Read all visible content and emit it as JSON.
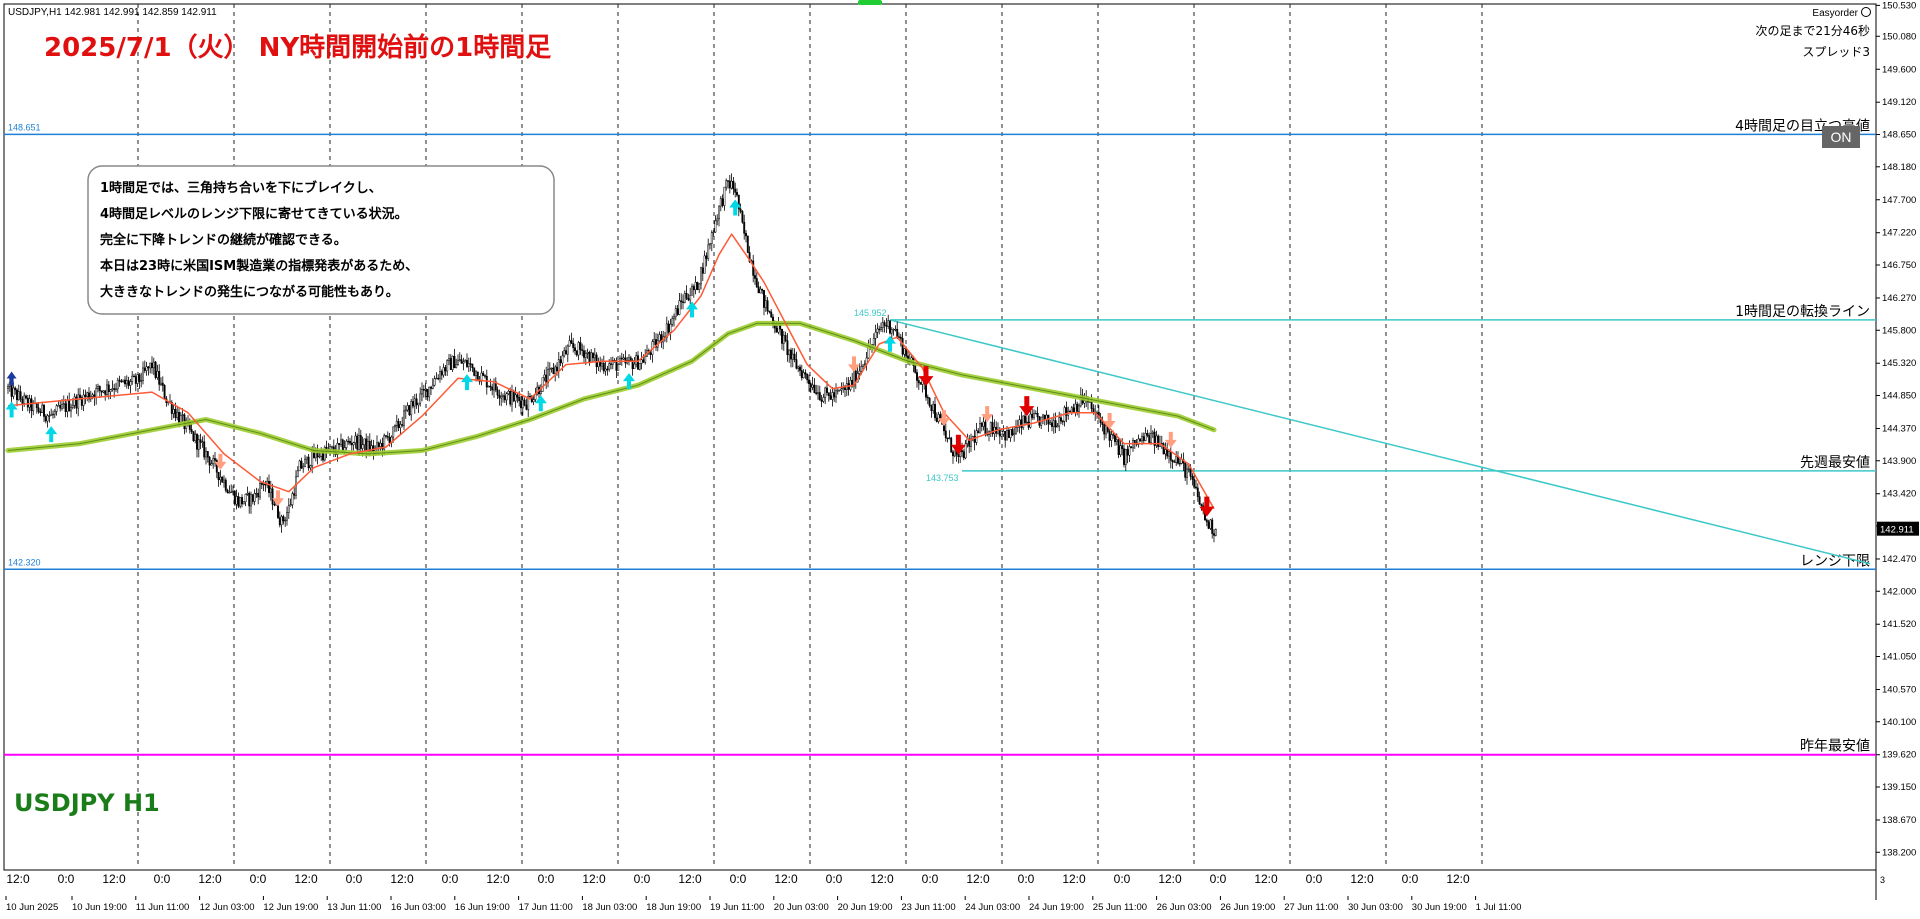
{
  "window": {
    "header": "USDJPY,H1  142.981 142.991 142.859 142.911"
  },
  "title_overlay": "2025/7/1（火） NY時間開始前の1時間足",
  "symbol_label": "USDJPY H1",
  "info_panel": {
    "brand": "Easyorder",
    "countdown": "次の足まで21分46秒",
    "spread": "スプレッド3"
  },
  "on_button": "ON",
  "annotation": {
    "lines": [
      "1時間足では、三角持ち合いを下にブレイクし、",
      "4時間足レベルのレンジ下限に寄せてきている状況。",
      "完全に下降トレンドの継続が確認できる。",
      "本日は23時に米国ISM製造業の指標発表があるため、",
      "大ききなトレンドの発生につながる可能性もあり。"
    ]
  },
  "colors": {
    "level_line": "#1e7fd6",
    "cyan_line": "#3cc8c8",
    "magenta_line": "#ff00ff",
    "ma_fast": "#ff5a36",
    "ma_slow": "#9ccc2e",
    "title": "#e01010",
    "symbol": "#1a7d1a",
    "arrow_up": "#00d8e8",
    "arrow_down_light": "#ff9f80",
    "arrow_down_strong": "#e00000"
  },
  "chart_data": {
    "type": "candlestick",
    "symbol": "USDJPY",
    "timeframe": "H1",
    "ylim": [
      138.0,
      150.55
    ],
    "current_price": "142.911",
    "y_ticks": [
      "150.530",
      "150.080",
      "149.600",
      "149.120",
      "148.650",
      "148.180",
      "147.700",
      "147.220",
      "146.750",
      "146.270",
      "145.800",
      "145.320",
      "144.850",
      "144.370",
      "143.900",
      "143.420",
      "142.950",
      "142.470",
      "142.000",
      "141.520",
      "141.050",
      "140.570",
      "140.100",
      "139.620",
      "139.150",
      "138.670",
      "138.200"
    ],
    "x_top_labels": [
      "12:0",
      "0:0",
      "12:0",
      "0:0",
      "12:0",
      "0:0",
      "12:0",
      "0:0",
      "12:0",
      "0:0",
      "12:0",
      "0:0",
      "12:0",
      "0:0",
      "12:0",
      "0:0",
      "12:0",
      "0:0",
      "12:0",
      "0:0",
      "12:0",
      "0:0",
      "12:0",
      "0:0",
      "12:0",
      "0:0",
      "12:0",
      "0:0",
      "12:0",
      "0:0",
      "12:0"
    ],
    "x_bottom_labels": [
      "10 Jun 2025",
      "10 Jun 19:00",
      "11 Jun 11:00",
      "12 Jun 03:00",
      "12 Jun 19:00",
      "13 Jun 11:00",
      "16 Jun 03:00",
      "16 Jun 19:00",
      "17 Jun 11:00",
      "18 Jun 03:00",
      "18 Jun 19:00",
      "19 Jun 11:00",
      "20 Jun 03:00",
      "20 Jun 19:00",
      "23 Jun 11:00",
      "24 Jun 03:00",
      "24 Jun 19:00",
      "25 Jun 11:00",
      "26 Jun 03:00",
      "26 Jun 19:00",
      "27 Jun 11:00",
      "30 Jun 03:00",
      "30 Jun 19:00",
      "1 Jul 11:00"
    ],
    "levels": [
      {
        "price": 148.651,
        "label_left": "148.651",
        "label_right": "4時間足の目立つ高値"
      },
      {
        "price": 142.32,
        "label_left": "142.320",
        "label_right": "レンジ下限"
      },
      {
        "price": 139.62,
        "label_left": "",
        "label_right": "昨年最安値"
      }
    ],
    "cyan_levels": [
      {
        "price": 145.952,
        "label": "145.952",
        "label_right": "1時間足の転換ライン"
      },
      {
        "price": 143.753,
        "label": "143.753",
        "label_right": "先週最安値"
      }
    ],
    "trendline": {
      "from_price": 145.95,
      "to_price": 142.4
    },
    "path": [
      [
        0,
        144.95
      ],
      [
        12,
        144.7
      ],
      [
        24,
        144.55
      ],
      [
        36,
        144.75
      ],
      [
        48,
        144.9
      ],
      [
        60,
        145.0
      ],
      [
        72,
        145.05
      ],
      [
        80,
        145.3
      ],
      [
        88,
        144.8
      ],
      [
        100,
        144.35
      ],
      [
        110,
        144.0
      ],
      [
        120,
        143.6
      ],
      [
        128,
        143.3
      ],
      [
        136,
        143.35
      ],
      [
        142,
        143.6
      ],
      [
        148,
        143.3
      ],
      [
        152,
        143.0
      ],
      [
        156,
        143.2
      ],
      [
        162,
        143.8
      ],
      [
        172,
        144.0
      ],
      [
        182,
        144.05
      ],
      [
        192,
        144.2
      ],
      [
        204,
        144.05
      ],
      [
        214,
        144.3
      ],
      [
        224,
        144.7
      ],
      [
        232,
        144.9
      ],
      [
        240,
        145.2
      ],
      [
        248,
        145.35
      ],
      [
        256,
        145.3
      ],
      [
        264,
        145.1
      ],
      [
        276,
        144.85
      ],
      [
        288,
        144.75
      ],
      [
        296,
        145.0
      ],
      [
        304,
        145.25
      ],
      [
        312,
        145.55
      ],
      [
        320,
        145.5
      ],
      [
        328,
        145.3
      ],
      [
        340,
        145.3
      ],
      [
        352,
        145.35
      ],
      [
        360,
        145.6
      ],
      [
        368,
        145.9
      ],
      [
        376,
        146.3
      ],
      [
        382,
        146.4
      ],
      [
        388,
        146.9
      ],
      [
        394,
        147.5
      ],
      [
        400,
        147.95
      ],
      [
        404,
        147.85
      ],
      [
        408,
        147.3
      ],
      [
        414,
        146.7
      ],
      [
        420,
        146.2
      ],
      [
        428,
        145.8
      ],
      [
        436,
        145.35
      ],
      [
        444,
        145.1
      ],
      [
        452,
        144.85
      ],
      [
        460,
        144.85
      ],
      [
        468,
        145.0
      ],
      [
        474,
        145.3
      ],
      [
        480,
        145.6
      ],
      [
        486,
        145.9
      ],
      [
        492,
        145.85
      ],
      [
        498,
        145.5
      ],
      [
        504,
        145.2
      ],
      [
        510,
        144.9
      ],
      [
        516,
        144.55
      ],
      [
        522,
        144.2
      ],
      [
        528,
        143.9
      ],
      [
        534,
        144.15
      ],
      [
        540,
        144.35
      ],
      [
        548,
        144.4
      ],
      [
        556,
        144.25
      ],
      [
        564,
        144.45
      ],
      [
        572,
        144.5
      ],
      [
        580,
        144.45
      ],
      [
        590,
        144.65
      ],
      [
        598,
        144.8
      ],
      [
        606,
        144.5
      ],
      [
        614,
        144.2
      ],
      [
        620,
        143.95
      ],
      [
        626,
        144.15
      ],
      [
        634,
        144.25
      ],
      [
        642,
        144.1
      ],
      [
        650,
        143.9
      ],
      [
        656,
        143.7
      ],
      [
        662,
        143.3
      ],
      [
        666,
        143.0
      ],
      [
        670,
        142.9
      ]
    ],
    "ma_fast": [
      [
        0,
        144.7
      ],
      [
        40,
        144.8
      ],
      [
        80,
        144.9
      ],
      [
        100,
        144.6
      ],
      [
        120,
        144.0
      ],
      [
        140,
        143.6
      ],
      [
        156,
        143.45
      ],
      [
        170,
        143.8
      ],
      [
        190,
        144.0
      ],
      [
        210,
        144.1
      ],
      [
        230,
        144.55
      ],
      [
        250,
        145.1
      ],
      [
        270,
        145.05
      ],
      [
        290,
        144.8
      ],
      [
        310,
        145.3
      ],
      [
        330,
        145.35
      ],
      [
        350,
        145.35
      ],
      [
        370,
        145.8
      ],
      [
        385,
        146.3
      ],
      [
        395,
        146.9
      ],
      [
        402,
        147.2
      ],
      [
        410,
        146.9
      ],
      [
        420,
        146.5
      ],
      [
        432,
        145.9
      ],
      [
        444,
        145.3
      ],
      [
        458,
        144.95
      ],
      [
        470,
        145.0
      ],
      [
        484,
        145.6
      ],
      [
        494,
        145.7
      ],
      [
        508,
        145.25
      ],
      [
        520,
        144.6
      ],
      [
        534,
        144.2
      ],
      [
        550,
        144.35
      ],
      [
        570,
        144.45
      ],
      [
        590,
        144.6
      ],
      [
        604,
        144.6
      ],
      [
        620,
        144.15
      ],
      [
        640,
        144.15
      ],
      [
        656,
        143.85
      ],
      [
        670,
        143.2
      ]
    ],
    "ma_slow": [
      [
        0,
        144.05
      ],
      [
        40,
        144.15
      ],
      [
        80,
        144.35
      ],
      [
        110,
        144.5
      ],
      [
        140,
        144.3
      ],
      [
        170,
        144.05
      ],
      [
        200,
        144.0
      ],
      [
        230,
        144.05
      ],
      [
        260,
        144.25
      ],
      [
        290,
        144.5
      ],
      [
        320,
        144.8
      ],
      [
        350,
        145.0
      ],
      [
        380,
        145.35
      ],
      [
        400,
        145.75
      ],
      [
        416,
        145.9
      ],
      [
        440,
        145.9
      ],
      [
        470,
        145.65
      ],
      [
        500,
        145.35
      ],
      [
        530,
        145.15
      ],
      [
        560,
        145.0
      ],
      [
        590,
        144.85
      ],
      [
        620,
        144.7
      ],
      [
        650,
        144.55
      ],
      [
        670,
        144.35
      ]
    ],
    "arrows": [
      {
        "i": 2,
        "dir": "up",
        "color": "arrow_up"
      },
      {
        "i": 24,
        "dir": "up",
        "color": "arrow_up"
      },
      {
        "i": 118,
        "dir": "down",
        "color": "arrow_down_light"
      },
      {
        "i": 150,
        "dir": "down",
        "color": "arrow_down_light"
      },
      {
        "i": 255,
        "dir": "up",
        "color": "arrow_up"
      },
      {
        "i": 296,
        "dir": "up",
        "color": "arrow_up"
      },
      {
        "i": 345,
        "dir": "up",
        "color": "arrow_up"
      },
      {
        "i": 380,
        "dir": "up",
        "color": "arrow_up"
      },
      {
        "i": 404,
        "dir": "up",
        "color": "arrow_up"
      },
      {
        "i": 470,
        "dir": "down",
        "color": "arrow_down_light"
      },
      {
        "i": 490,
        "dir": "up",
        "color": "arrow_up"
      },
      {
        "i": 510,
        "dir": "down",
        "color": "arrow_down_strong"
      },
      {
        "i": 520,
        "dir": "down",
        "color": "arrow_down_light"
      },
      {
        "i": 528,
        "dir": "down",
        "color": "arrow_down_strong"
      },
      {
        "i": 544,
        "dir": "down",
        "color": "arrow_down_light"
      },
      {
        "i": 566,
        "dir": "down",
        "color": "arrow_down_strong"
      },
      {
        "i": 612,
        "dir": "down",
        "color": "arrow_down_light"
      },
      {
        "i": 646,
        "dir": "down",
        "color": "arrow_down_light"
      },
      {
        "i": 666,
        "dir": "down",
        "color": "arrow_down_strong"
      }
    ]
  }
}
